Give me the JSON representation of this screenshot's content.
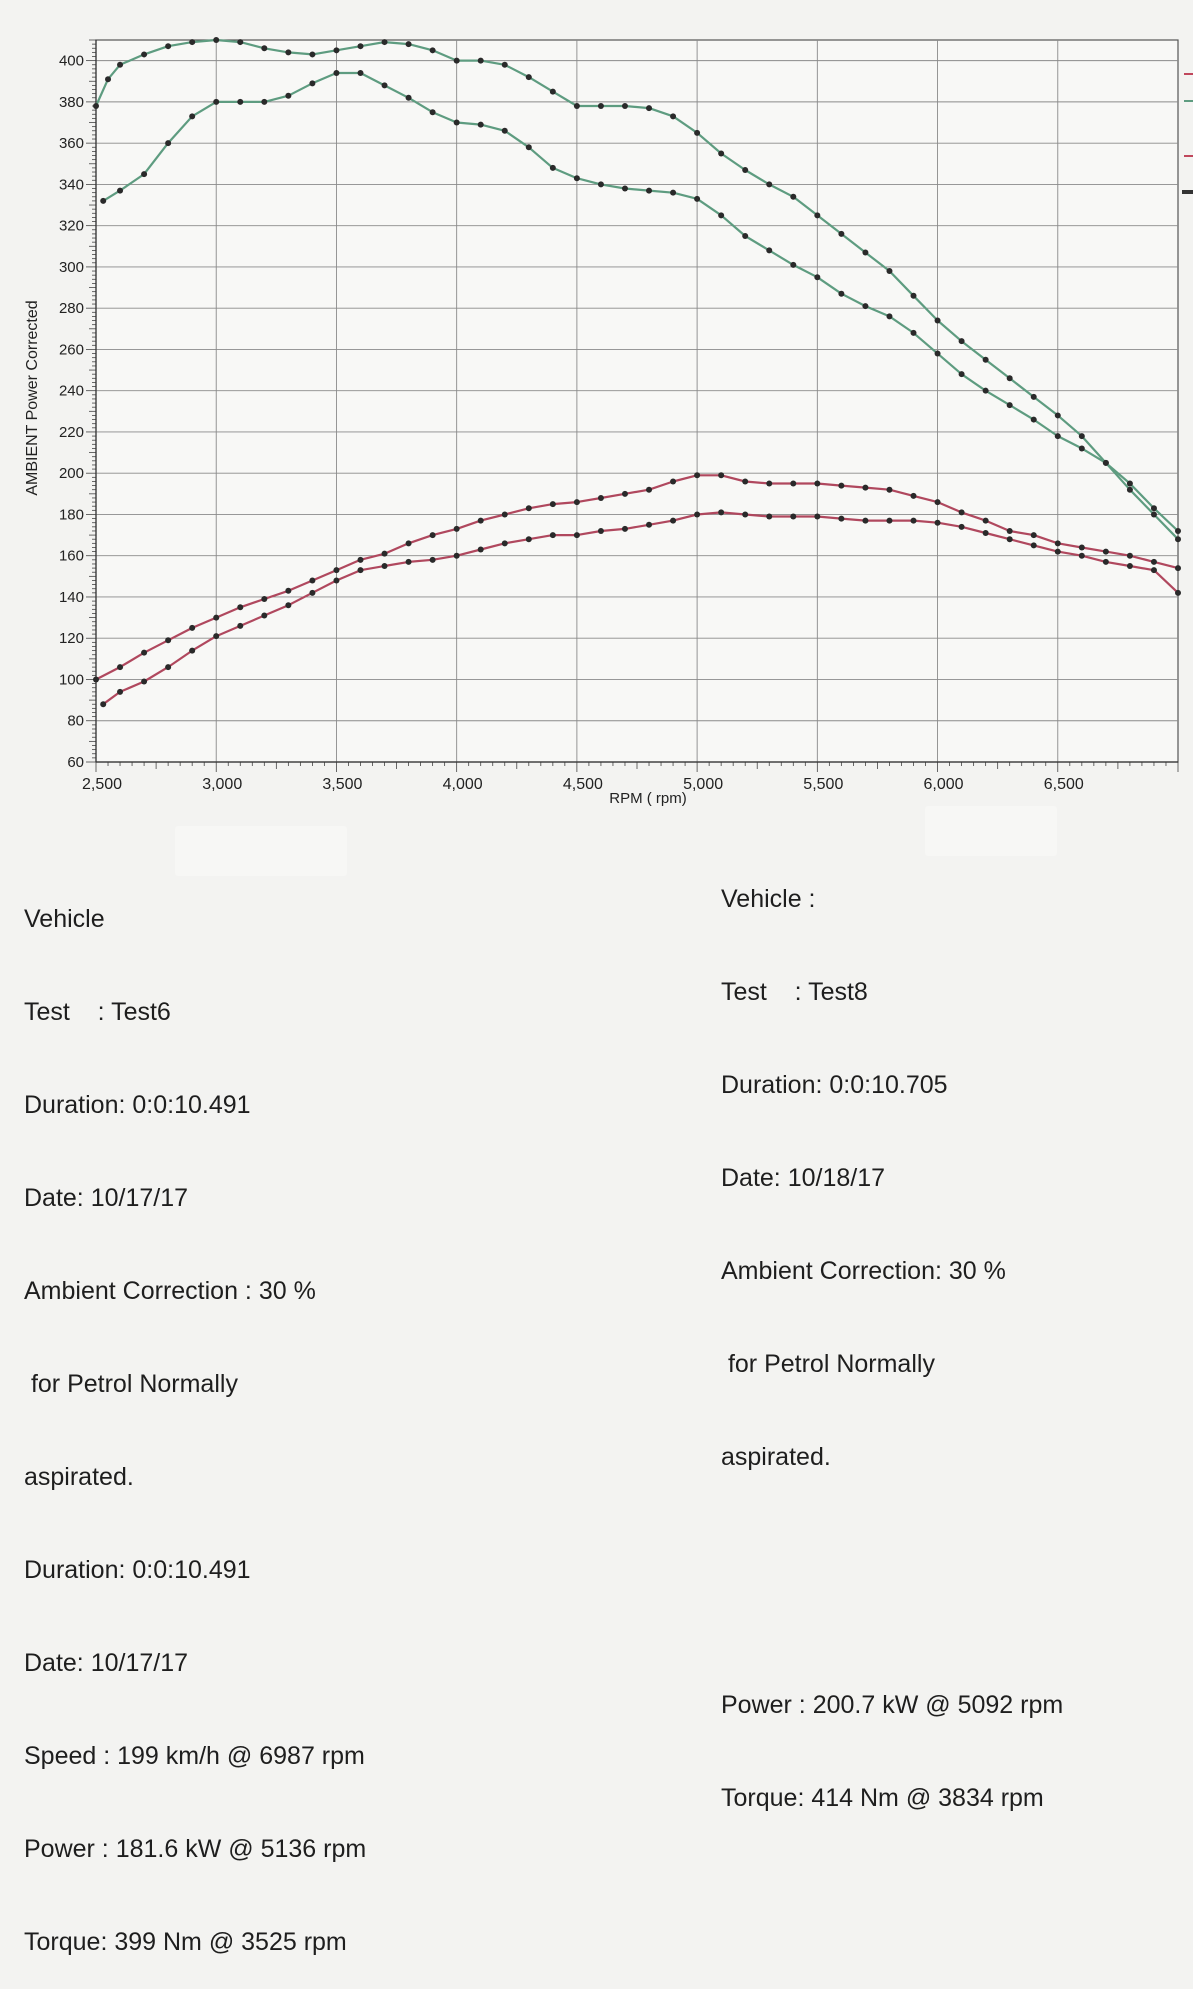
{
  "chart_data": {
    "type": "line",
    "title": "",
    "xlabel": "RPM ( rpm)",
    "ylabel": "AMBIENT Power Corrected",
    "xlim": [
      2500,
      7000
    ],
    "ylim": [
      60,
      410
    ],
    "x_ticks": [
      2500,
      3000,
      3500,
      4000,
      4500,
      5000,
      5500,
      6000,
      6500
    ],
    "x_tick_labels": [
      "2,500",
      "3,000",
      "3,500",
      "4,000",
      "4,500",
      "5,000",
      "5,500",
      "6,000",
      "6,500"
    ],
    "y_ticks": [
      60,
      80,
      100,
      120,
      140,
      160,
      180,
      200,
      220,
      240,
      260,
      280,
      300,
      320,
      340,
      360,
      380,
      400
    ],
    "y_tick_labels": [
      "60",
      "80",
      "100",
      "120",
      "140",
      "160",
      "180",
      "200",
      "220",
      "240",
      "260",
      "280",
      "300",
      "320",
      "340",
      "360",
      "380",
      "400"
    ],
    "grid": true,
    "series": [
      {
        "color": "#5e9c80",
        "x": [
          2500,
          2550,
          2600,
          2700,
          2800,
          2900,
          3000,
          3100,
          3200,
          3300,
          3400,
          3500,
          3600,
          3700,
          3800,
          3900,
          4000,
          4100,
          4200,
          4300,
          4400,
          4500,
          4600,
          4700,
          4800,
          4900,
          5000,
          5100,
          5200,
          5300,
          5400,
          5500,
          5600,
          5700,
          5800,
          5900,
          6000,
          6100,
          6200,
          6300,
          6400,
          6500,
          6600,
          6700,
          6800,
          6900,
          7000
        ],
        "y": [
          378,
          391,
          398,
          403,
          407,
          409,
          410,
          409,
          406,
          404,
          403,
          405,
          407,
          409,
          408,
          405,
          400,
          400,
          398,
          392,
          385,
          378,
          378,
          378,
          377,
          373,
          365,
          355,
          347,
          340,
          334,
          325,
          316,
          307,
          298,
          286,
          274,
          264,
          255,
          246,
          237,
          228,
          218,
          205,
          192,
          180,
          168
        ]
      },
      {
        "color": "#5e9c80",
        "x": [
          2530,
          2600,
          2700,
          2800,
          2900,
          3000,
          3100,
          3200,
          3300,
          3400,
          3500,
          3600,
          3700,
          3800,
          3900,
          4000,
          4100,
          4200,
          4300,
          4400,
          4500,
          4600,
          4700,
          4800,
          4900,
          5000,
          5100,
          5200,
          5300,
          5400,
          5500,
          5600,
          5700,
          5800,
          5900,
          6000,
          6100,
          6200,
          6300,
          6400,
          6500,
          6600,
          6700,
          6800,
          6900,
          7000
        ],
        "y": [
          332,
          337,
          345,
          360,
          373,
          380,
          380,
          380,
          383,
          389,
          394,
          394,
          388,
          382,
          375,
          370,
          369,
          366,
          358,
          348,
          343,
          340,
          338,
          337,
          336,
          333,
          325,
          315,
          308,
          301,
          295,
          287,
          281,
          276,
          268,
          258,
          248,
          240,
          233,
          226,
          218,
          212,
          205,
          195,
          183,
          172
        ]
      },
      {
        "color": "#b0485e",
        "x": [
          2500,
          2600,
          2700,
          2800,
          2900,
          3000,
          3100,
          3200,
          3300,
          3400,
          3500,
          3600,
          3700,
          3800,
          3900,
          4000,
          4100,
          4200,
          4300,
          4400,
          4500,
          4600,
          4700,
          4800,
          4900,
          5000,
          5100,
          5200,
          5300,
          5400,
          5500,
          5600,
          5700,
          5800,
          5900,
          6000,
          6100,
          6200,
          6300,
          6400,
          6500,
          6600,
          6700,
          6800,
          6900,
          7000
        ],
        "y": [
          100,
          106,
          113,
          119,
          125,
          130,
          135,
          139,
          143,
          148,
          153,
          158,
          161,
          166,
          170,
          173,
          177,
          180,
          183,
          185,
          186,
          188,
          190,
          192,
          196,
          199,
          199,
          196,
          195,
          195,
          195,
          194,
          193,
          192,
          189,
          186,
          181,
          177,
          172,
          170,
          166,
          164,
          162,
          160,
          157,
          154
        ]
      },
      {
        "color": "#b0485e",
        "x": [
          2530,
          2600,
          2700,
          2800,
          2900,
          3000,
          3100,
          3200,
          3300,
          3400,
          3500,
          3600,
          3700,
          3800,
          3900,
          4000,
          4100,
          4200,
          4300,
          4400,
          4500,
          4600,
          4700,
          4800,
          4900,
          5000,
          5100,
          5200,
          5300,
          5400,
          5500,
          5600,
          5700,
          5800,
          5900,
          6000,
          6100,
          6200,
          6300,
          6400,
          6500,
          6600,
          6700,
          6800,
          6900,
          7000
        ],
        "y": [
          88,
          94,
          99,
          106,
          114,
          121,
          126,
          131,
          136,
          142,
          148,
          153,
          155,
          157,
          158,
          160,
          163,
          166,
          168,
          170,
          170,
          172,
          173,
          175,
          177,
          180,
          181,
          180,
          179,
          179,
          179,
          178,
          177,
          177,
          177,
          176,
          174,
          171,
          168,
          165,
          162,
          160,
          157,
          155,
          153,
          142
        ]
      }
    ]
  },
  "left_info": {
    "line1": "Vehicle",
    "line2": "Test    : Test6",
    "line3": "Duration: 0:0:10.491",
    "line4": "Date: 10/17/17",
    "line5": "Ambient Correction : 30 %",
    "line6": " for Petrol Normally",
    "line7": "aspirated.",
    "line8": "Duration: 0:0:10.491",
    "line9": "Date: 10/17/17",
    "line10": "Speed : 199 km/h @ 6987 rpm",
    "line11": "Power : 181.6 kW @ 5136 rpm",
    "line12": "Torque: 399 Nm @ 3525 rpm"
  },
  "right_info": {
    "line1": "Vehicle :",
    "line2": "Test    : Test8",
    "line3": "Duration: 0:0:10.705",
    "line4": "Date: 10/18/17",
    "line5": "Ambient Correction: 30 %",
    "line6": " for Petrol Normally",
    "line7": "aspirated.",
    "line8": "Power : 200.7 kW @ 5092 rpm",
    "line9": "Torque: 414 Nm @ 3834 rpm"
  }
}
